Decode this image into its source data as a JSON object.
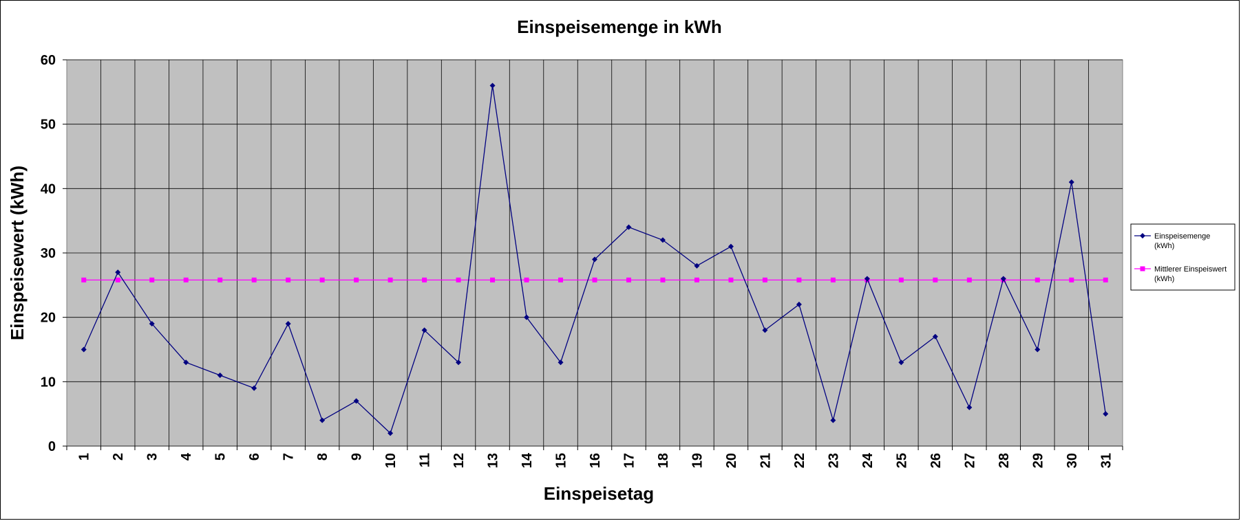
{
  "chart_data": {
    "type": "line",
    "title": "Einspeisemenge in kWh",
    "xlabel": "Einspeisetag",
    "ylabel": "Einspeisewert  (kWh)",
    "ylim": [
      0,
      60
    ],
    "yticks": [
      "0",
      "10",
      "20",
      "30",
      "40",
      "50",
      "60"
    ],
    "categories": [
      "1",
      "2",
      "3",
      "4",
      "5",
      "6",
      "7",
      "8",
      "9",
      "10",
      "11",
      "12",
      "13",
      "14",
      "15",
      "16",
      "17",
      "18",
      "19",
      "20",
      "21",
      "22",
      "23",
      "24",
      "25",
      "26",
      "27",
      "28",
      "29",
      "30",
      "31"
    ],
    "grid": true,
    "legend_position": "right",
    "background": "#c0c0c0",
    "series": [
      {
        "name": "Einspeisemenge (kWh)",
        "legend_lines": [
          "Einspeisemenge",
          "(kWh)"
        ],
        "color": "#000080",
        "marker": "diamond",
        "values": [
          15,
          27,
          19,
          13,
          11,
          9,
          19,
          4,
          7,
          2,
          18,
          13,
          56,
          20,
          13,
          29,
          34,
          32,
          28,
          31,
          18,
          22,
          4,
          26,
          13,
          17,
          6,
          26,
          15,
          41,
          5
        ]
      },
      {
        "name": "Mittlerer Einspeiswert (kWh)",
        "legend_lines": [
          "Mittlerer Einspeiswert",
          "(kWh)"
        ],
        "color": "#ff00ff",
        "marker": "square",
        "values": [
          25.8,
          25.8,
          25.8,
          25.8,
          25.8,
          25.8,
          25.8,
          25.8,
          25.8,
          25.8,
          25.8,
          25.8,
          25.8,
          25.8,
          25.8,
          25.8,
          25.8,
          25.8,
          25.8,
          25.8,
          25.8,
          25.8,
          25.8,
          25.8,
          25.8,
          25.8,
          25.8,
          25.8,
          25.8,
          25.8,
          25.8
        ]
      }
    ]
  }
}
